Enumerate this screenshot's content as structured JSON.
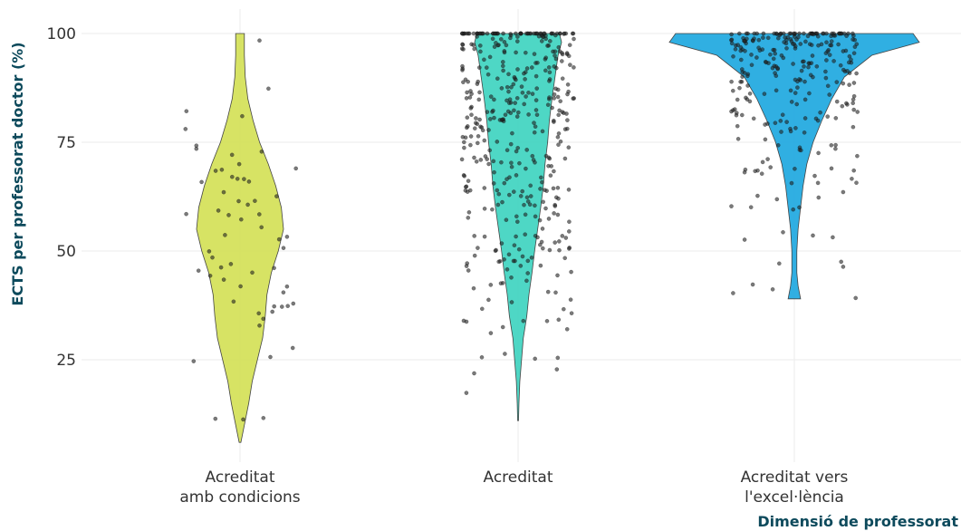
{
  "chart_data": {
    "type": "violin",
    "xlabel": "Dimensió de professorat",
    "ylabel": "ECTS per professorat doctor (%)",
    "ylim": [
      5,
      100
    ],
    "yticks": [
      25,
      50,
      75,
      100
    ],
    "grid": true,
    "legend": "none",
    "categories": [
      {
        "label_lines": [
          "Acreditat",
          "amb condicions"
        ],
        "color": "#d4e157",
        "min": 6,
        "max": 100,
        "median": 53
      },
      {
        "label_lines": [
          "Acreditat"
        ],
        "color": "#3fd4c0",
        "min": 11,
        "max": 100,
        "median": 80
      },
      {
        "label_lines": [
          "Acreditat vers",
          "l'excel·lència"
        ],
        "color": "#1ea8e0",
        "min": 39,
        "max": 100,
        "median": 93
      }
    ],
    "density_profiles": [
      [
        [
          6,
          0.02
        ],
        [
          10,
          0.1
        ],
        [
          15,
          0.2
        ],
        [
          20,
          0.28
        ],
        [
          25,
          0.4
        ],
        [
          30,
          0.52
        ],
        [
          35,
          0.58
        ],
        [
          40,
          0.62
        ],
        [
          45,
          0.72
        ],
        [
          50,
          0.88
        ],
        [
          55,
          1.0
        ],
        [
          60,
          0.95
        ],
        [
          65,
          0.82
        ],
        [
          70,
          0.65
        ],
        [
          75,
          0.45
        ],
        [
          80,
          0.3
        ],
        [
          85,
          0.18
        ],
        [
          90,
          0.12
        ],
        [
          95,
          0.1
        ],
        [
          100,
          0.1
        ]
      ],
      [
        [
          11,
          0.01
        ],
        [
          15,
          0.02
        ],
        [
          20,
          0.04
        ],
        [
          25,
          0.08
        ],
        [
          30,
          0.12
        ],
        [
          35,
          0.2
        ],
        [
          40,
          0.25
        ],
        [
          45,
          0.32
        ],
        [
          50,
          0.38
        ],
        [
          55,
          0.45
        ],
        [
          60,
          0.52
        ],
        [
          65,
          0.58
        ],
        [
          70,
          0.62
        ],
        [
          75,
          0.68
        ],
        [
          80,
          0.72
        ],
        [
          85,
          0.78
        ],
        [
          90,
          0.85
        ],
        [
          95,
          0.92
        ],
        [
          98,
          1.0
        ],
        [
          100,
          0.95
        ]
      ],
      [
        [
          39,
          0.05
        ],
        [
          42,
          0.03
        ],
        [
          45,
          0.02
        ],
        [
          50,
          0.02
        ],
        [
          55,
          0.03
        ],
        [
          60,
          0.05
        ],
        [
          65,
          0.07
        ],
        [
          70,
          0.1
        ],
        [
          75,
          0.15
        ],
        [
          80,
          0.22
        ],
        [
          85,
          0.3
        ],
        [
          90,
          0.4
        ],
        [
          95,
          0.62
        ],
        [
          98,
          1.0
        ],
        [
          100,
          0.95
        ]
      ]
    ],
    "points_per_category": [
      60,
      420,
      280
    ]
  }
}
